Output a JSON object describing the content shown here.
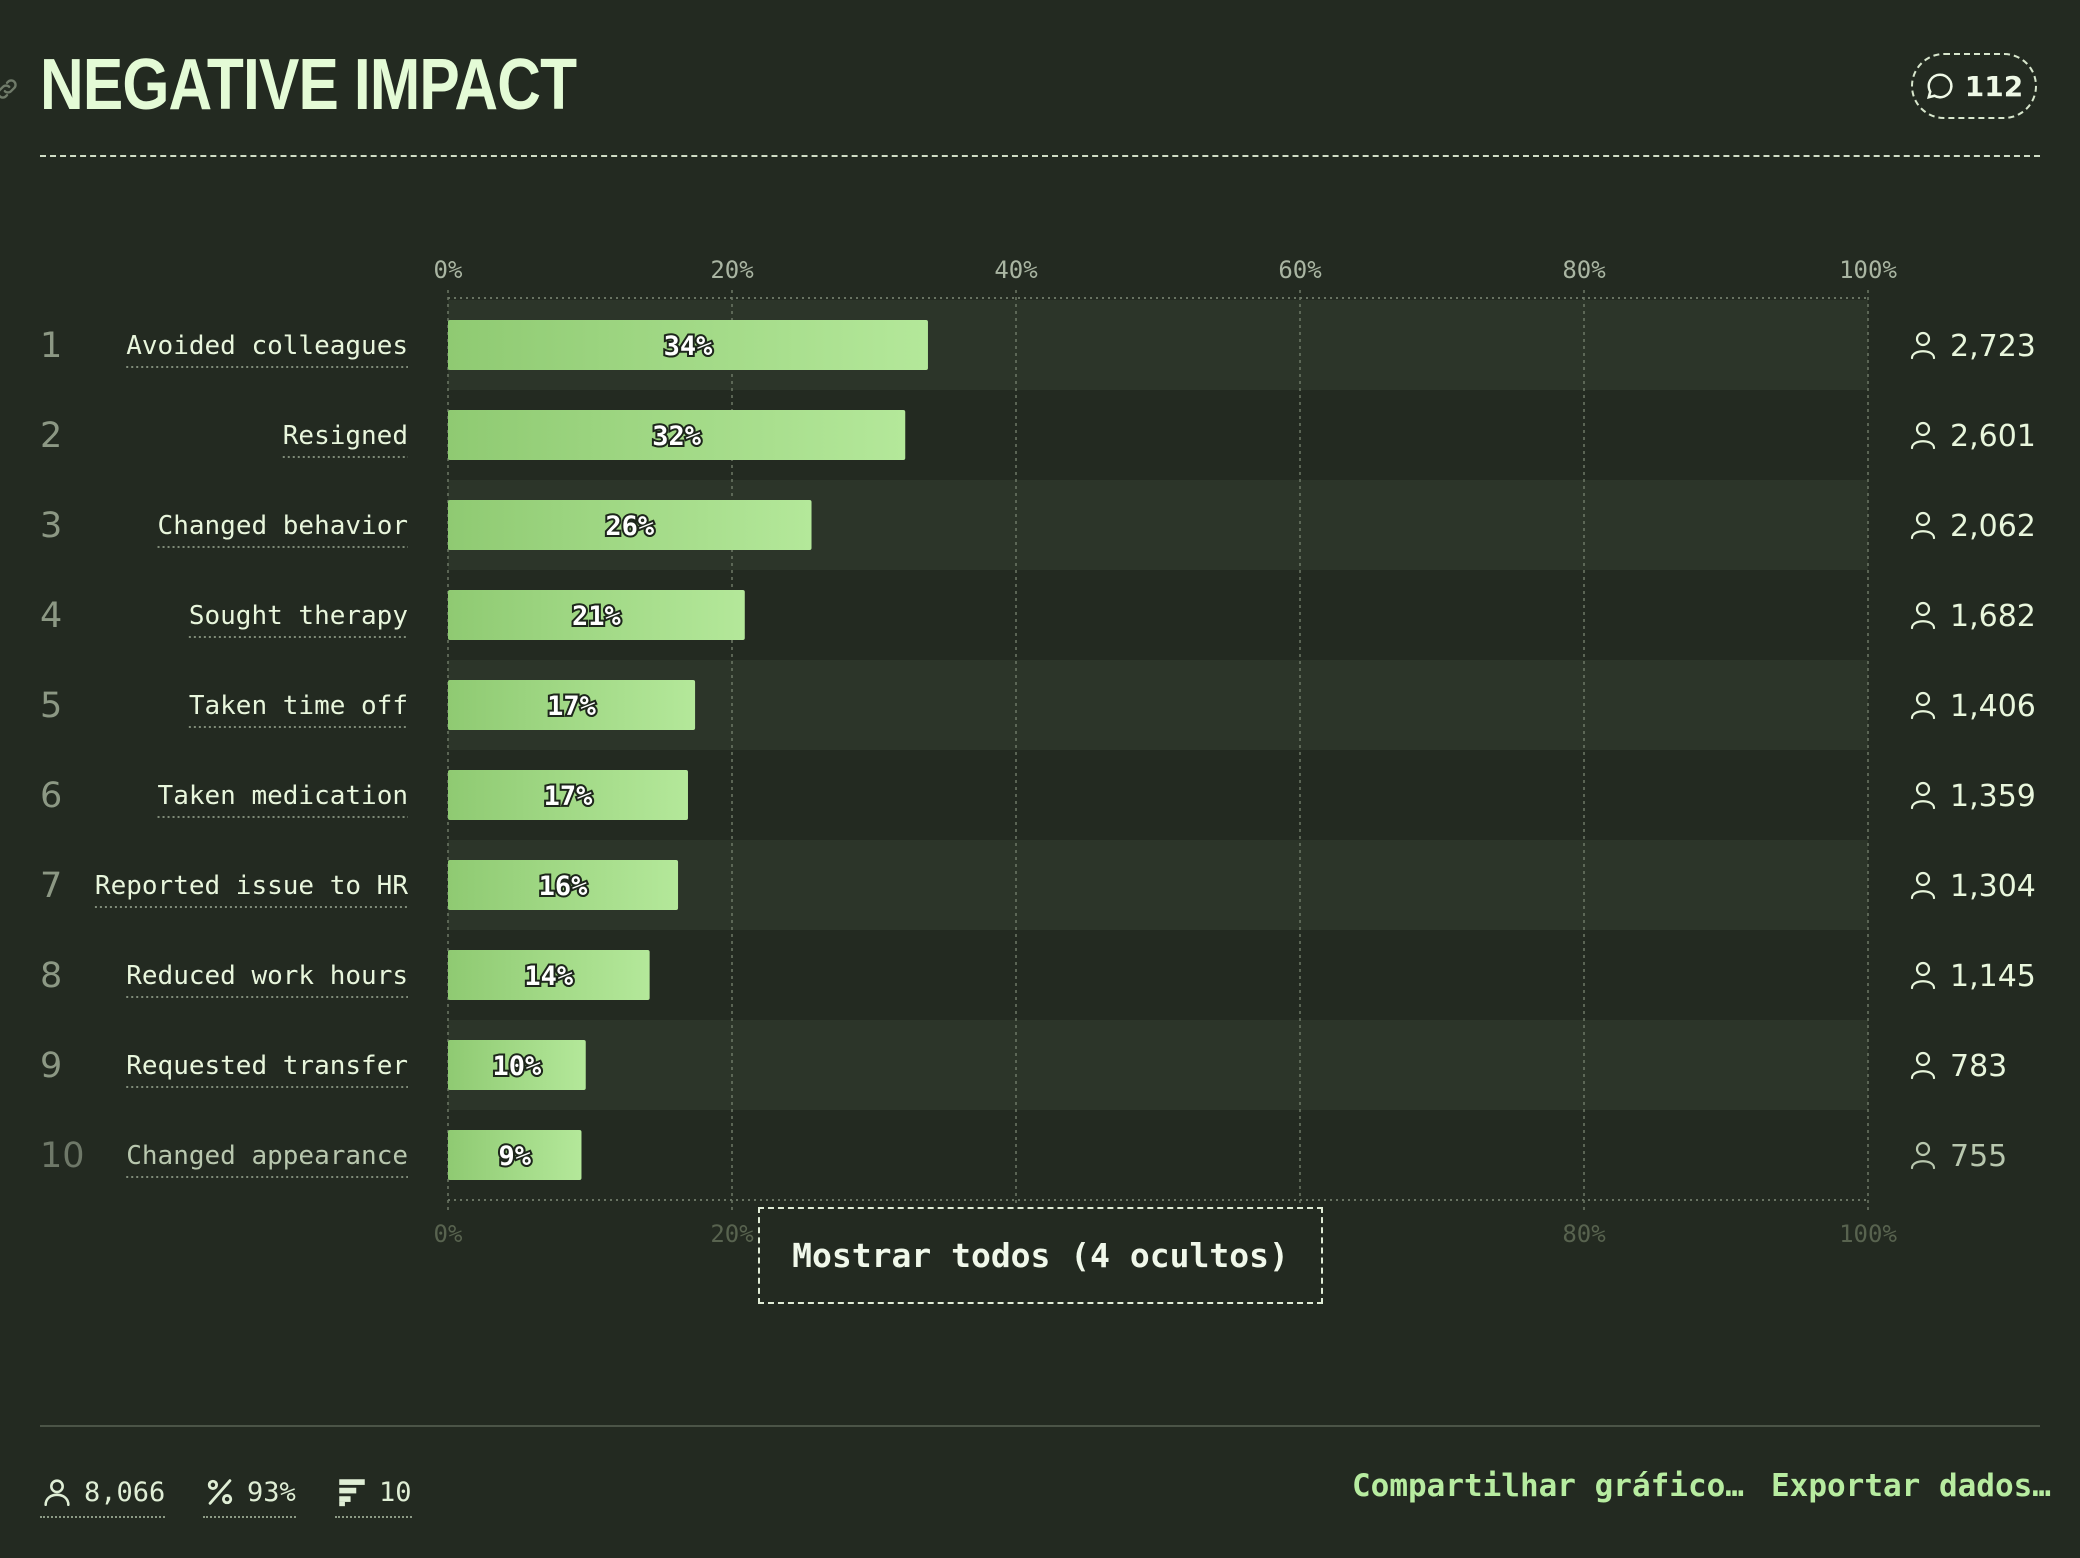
{
  "header": {
    "title": "NEGATIVE IMPACT",
    "comment_count": "112"
  },
  "show_all_label": "Mostrar todos (4 ocultos)",
  "footer": {
    "respondents": "8,066",
    "percent": "93%",
    "items": "10",
    "share_label": "Compartilhar gráfico…",
    "export_label": "Exportar dados…"
  },
  "colors": {
    "background": "#232a21",
    "bar_start": "#8fca72",
    "bar_end": "#b4e89a",
    "text": "#e8f6dc",
    "accent": "#b7eca0"
  },
  "icons": {
    "link": "link-icon",
    "comment": "comment-icon",
    "person": "person-icon",
    "percent": "percent-icon",
    "items": "list-icon"
  },
  "chart_data": {
    "type": "bar",
    "orientation": "horizontal",
    "title": "NEGATIVE IMPACT",
    "xlim": [
      0,
      100
    ],
    "xticks": [
      "0%",
      "20%",
      "40%",
      "60%",
      "80%",
      "100%"
    ],
    "grid": true,
    "categories": [
      "Avoided colleagues",
      "Resigned",
      "Changed behavior",
      "Sought therapy",
      "Taken time off",
      "Taken medication",
      "Reported issue to HR",
      "Reduced work hours",
      "Requested transfer",
      "Changed appearance"
    ],
    "ranks": [
      "1",
      "2",
      "3",
      "4",
      "5",
      "6",
      "7",
      "8",
      "9",
      "10"
    ],
    "values": [
      33.8,
      32.2,
      25.6,
      20.9,
      17.4,
      16.9,
      16.2,
      14.2,
      9.7,
      9.4
    ],
    "value_labels": [
      "34%",
      "32%",
      "26%",
      "21%",
      "17%",
      "17%",
      "16%",
      "14%",
      "10%",
      "9%"
    ],
    "counts": [
      "2,723",
      "2,601",
      "2,062",
      "1,682",
      "1,406",
      "1,359",
      "1,304",
      "1,145",
      "783",
      "755"
    ]
  }
}
